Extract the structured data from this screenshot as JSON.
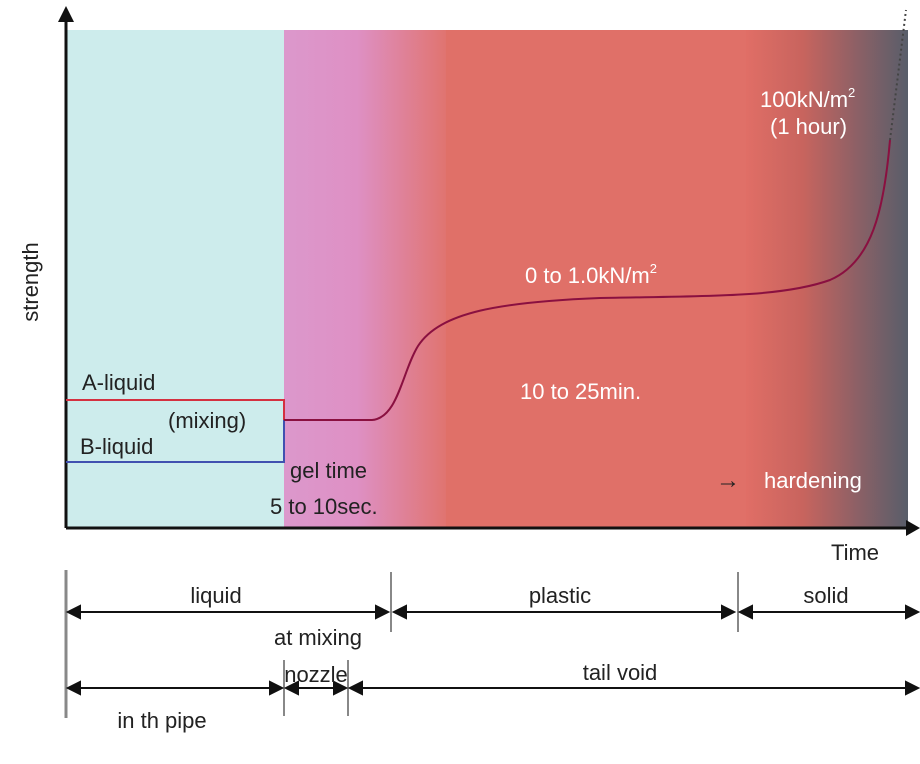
{
  "axes": {
    "y_label": "strength",
    "x_label": "Time"
  },
  "annotations": {
    "a_liquid": "A-liquid",
    "b_liquid": "B-liquid",
    "mixing": "(mixing)",
    "gel_time": "gel time",
    "gel_time_value": "5 to 10sec.",
    "plastic_strength": "0 to 1.0kN/m",
    "plastic_strength_sup": "2",
    "plastic_time": "10 to 25min.",
    "final_strength": "100kN/m",
    "final_strength_sup": "2",
    "final_time": "(1 hour)",
    "hardening_arrow": "→",
    "hardening": "hardening"
  },
  "phases": {
    "liquid": "liquid",
    "plastic": "plastic",
    "solid": "solid"
  },
  "locations": {
    "at_mixing": "at mixing",
    "nozzle": "nozzle",
    "tail_void": "tail void",
    "in_pipe": "in th pipe"
  },
  "colors": {
    "liquid_zone": "#cdecec",
    "gel_zone": "#dc98cc",
    "plastic_zone": "#e07068",
    "solid_zone": "#5e6470",
    "curve": "#8a1040",
    "a_liquid_line": "#d43040",
    "b_liquid_line": "#4050b0"
  }
}
